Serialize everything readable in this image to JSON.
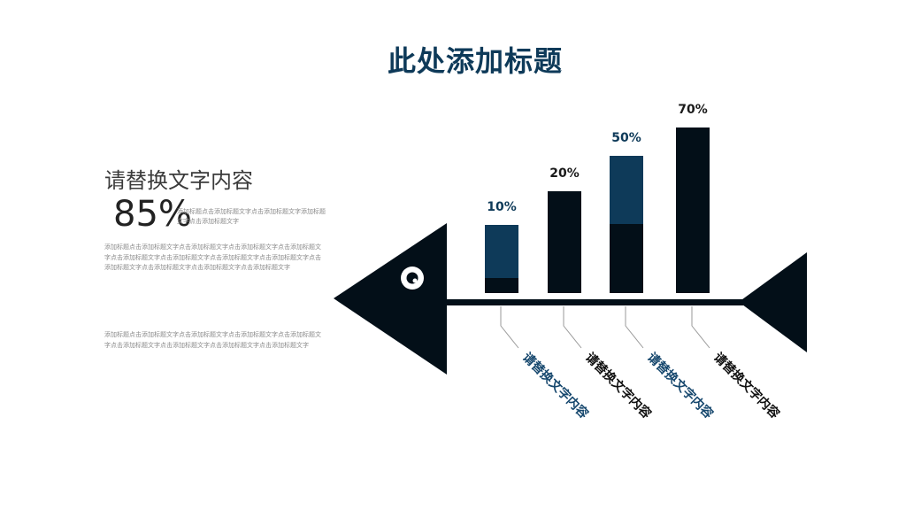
{
  "title": "此处添加标题",
  "left": {
    "heading": "请替换文字内容",
    "big_percent": "85%",
    "sub_note": "添加标题点击添加标题文字点击添加标题文字添加标题文字点击添加标题文字",
    "para1": "添加标题点击添加标题文字点击添加标题文字点击添加标题文字点击添加标题文字点击添加标题文字点击添加标题文字点击添加标题文字点击添加标题文字点击添加标题文字点击添加标题文字点击添加标题文字点击添加标题文字",
    "para2": "添加标题点击添加标题文字点击添加标题文字点击添加标题文字点击添加标题文字点击添加标题文字点击添加标题文字点击添加标题文字点击添加标题文字"
  },
  "chart_data": {
    "type": "bar",
    "categories": [
      "请替换文字内容",
      "请替换文字内容",
      "请替换文字内容",
      "请替换文字内容"
    ],
    "values": [
      10,
      20,
      50,
      70
    ],
    "value_labels": [
      "10%",
      "20%",
      "50%",
      "70%"
    ],
    "ylim": [
      0,
      100
    ],
    "colors": {
      "dark": "#030f18",
      "accent": "#0e3a59",
      "label_accent": "#17486e",
      "label_dark": "#111111"
    },
    "bar_styles": [
      "accent",
      "dark",
      "split",
      "dark"
    ],
    "label_colors": [
      "accent",
      "dark",
      "accent",
      "dark"
    ]
  }
}
